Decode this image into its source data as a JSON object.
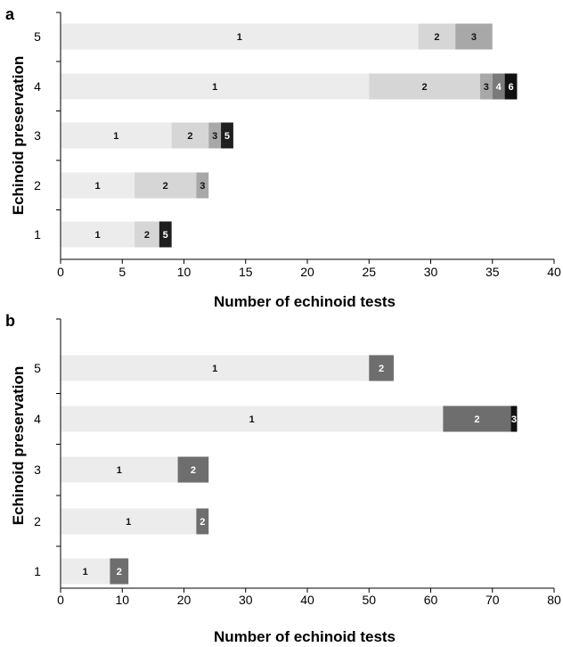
{
  "chart_data": [
    {
      "panel": "a",
      "type": "bar",
      "orientation": "horizontal",
      "stacked": true,
      "xlabel": "Number of echinoid tests",
      "ylabel": "Echinoid preservation",
      "xlim": [
        0,
        40
      ],
      "xticks": [
        "0",
        "5",
        "10",
        "15",
        "20",
        "25",
        "30",
        "35",
        "40"
      ],
      "categories": [
        "1",
        "2",
        "3",
        "4",
        "5"
      ],
      "bars": [
        {
          "category": "1",
          "segments": [
            {
              "label": "1",
              "value": 6
            },
            {
              "label": "2",
              "value": 2
            },
            {
              "label": "5",
              "value": 1
            }
          ]
        },
        {
          "category": "2",
          "segments": [
            {
              "label": "1",
              "value": 6
            },
            {
              "label": "2",
              "value": 5
            },
            {
              "label": "3",
              "value": 1
            }
          ]
        },
        {
          "category": "3",
          "segments": [
            {
              "label": "1",
              "value": 9
            },
            {
              "label": "2",
              "value": 3
            },
            {
              "label": "3",
              "value": 1
            },
            {
              "label": "5",
              "value": 1
            }
          ]
        },
        {
          "category": "4",
          "segments": [
            {
              "label": "1",
              "value": 25
            },
            {
              "label": "2",
              "value": 9
            },
            {
              "label": "3",
              "value": 1
            },
            {
              "label": "4",
              "value": 1
            },
            {
              "label": "6",
              "value": 1
            }
          ]
        },
        {
          "category": "5",
          "segments": [
            {
              "label": "1",
              "value": 29
            },
            {
              "label": "2",
              "value": 3
            },
            {
              "label": "3",
              "value": 3
            }
          ]
        }
      ],
      "legend": "none",
      "grid": false
    },
    {
      "panel": "b",
      "type": "bar",
      "orientation": "horizontal",
      "stacked": true,
      "xlabel": "Number of echinoid tests",
      "ylabel": "Echinoid preservation",
      "xlim": [
        0,
        80
      ],
      "xticks": [
        "0",
        "10",
        "20",
        "30",
        "40",
        "50",
        "60",
        "70",
        "80"
      ],
      "categories": [
        "1",
        "2",
        "3",
        "4",
        "5"
      ],
      "bars": [
        {
          "category": "1",
          "segments": [
            {
              "label": "1",
              "value": 8
            },
            {
              "label": "2",
              "value": 3
            }
          ]
        },
        {
          "category": "2",
          "segments": [
            {
              "label": "1",
              "value": 22
            },
            {
              "label": "2",
              "value": 2
            }
          ]
        },
        {
          "category": "3",
          "segments": [
            {
              "label": "1",
              "value": 19
            },
            {
              "label": "2",
              "value": 5
            }
          ]
        },
        {
          "category": "4",
          "segments": [
            {
              "label": "1",
              "value": 62
            },
            {
              "label": "2",
              "value": 11
            },
            {
              "label": "3",
              "value": 1
            }
          ]
        },
        {
          "category": "5",
          "segments": [
            {
              "label": "1",
              "value": 50
            },
            {
              "label": "2",
              "value": 4
            }
          ]
        }
      ],
      "legend": "none",
      "grid": false
    }
  ],
  "colors": {
    "seg_a_1": "#ececec",
    "seg_a_2": "#d6d6d6",
    "seg_a_3": "#a8a8a8",
    "seg_a_4": "#7a7a7a",
    "seg_a_5": "#1e1e1e",
    "seg_a_6": "#111111",
    "seg_b_1": "#ececec",
    "seg_b_2": "#6e6e6e",
    "seg_b_3": "#111111",
    "axis": "#000000"
  }
}
